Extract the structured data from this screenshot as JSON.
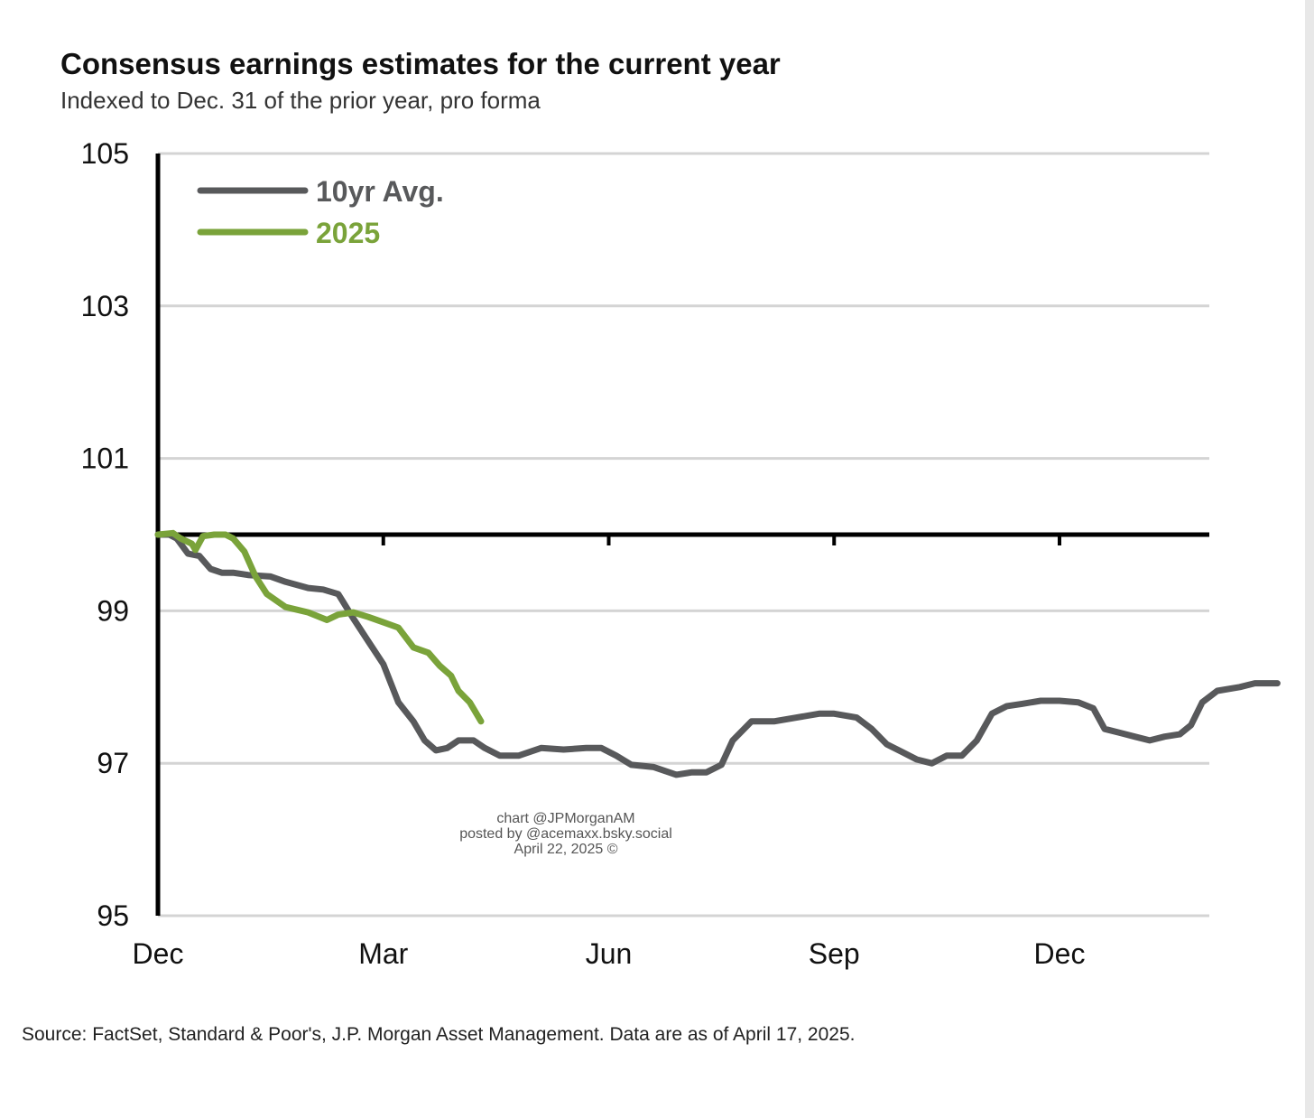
{
  "chart_data": {
    "type": "line",
    "title": "Consensus earnings estimates for the current year",
    "subtitle": "Indexed to Dec. 31 of the prior year, pro forma",
    "source": "Source: FactSet, Standard & Poor's, J.P. Morgan Asset Management. Data are as of April 17, 2025.",
    "watermark": [
      "chart @JPMorganAM",
      "posted by @acemaxx.bsky.social",
      "April 22, 2025 ©"
    ],
    "y_ticks": [
      105,
      103,
      101,
      99,
      97,
      95
    ],
    "y_tick_labels": [
      "105",
      "103",
      "101",
      "99",
      "97",
      "95"
    ],
    "ylim": [
      95,
      105
    ],
    "x_tick_labels": [
      "Dec",
      "Mar",
      "Jun",
      "Sep",
      "Dec"
    ],
    "x_tick_positions": [
      0,
      3,
      6,
      9,
      12
    ],
    "xlim": [
      0,
      13.9
    ],
    "x_unit_note": "months",
    "reference_line": 100,
    "grid": true,
    "legend_position": "top-left",
    "series": [
      {
        "name": "10yr Avg.",
        "color": "#58595b",
        "points": [
          [
            0,
            100
          ],
          [
            0.15,
            100.0
          ],
          [
            0.25,
            99.95
          ],
          [
            0.4,
            99.75
          ],
          [
            0.55,
            99.72
          ],
          [
            0.7,
            99.55
          ],
          [
            0.85,
            99.5
          ],
          [
            1.0,
            99.5
          ],
          [
            1.2,
            99.47
          ],
          [
            1.5,
            99.45
          ],
          [
            1.7,
            99.38
          ],
          [
            2.0,
            99.3
          ],
          [
            2.2,
            99.28
          ],
          [
            2.4,
            99.22
          ],
          [
            2.6,
            98.9
          ],
          [
            2.8,
            98.6
          ],
          [
            3.0,
            98.3
          ],
          [
            3.2,
            97.8
          ],
          [
            3.4,
            97.55
          ],
          [
            3.55,
            97.3
          ],
          [
            3.7,
            97.17
          ],
          [
            3.85,
            97.2
          ],
          [
            4.0,
            97.3
          ],
          [
            4.2,
            97.3
          ],
          [
            4.35,
            97.2
          ],
          [
            4.55,
            97.1
          ],
          [
            4.8,
            97.1
          ],
          [
            5.1,
            97.2
          ],
          [
            5.4,
            97.18
          ],
          [
            5.7,
            97.2
          ],
          [
            5.9,
            97.2
          ],
          [
            6.1,
            97.1
          ],
          [
            6.3,
            96.98
          ],
          [
            6.6,
            96.95
          ],
          [
            6.9,
            96.85
          ],
          [
            7.1,
            96.88
          ],
          [
            7.3,
            96.88
          ],
          [
            7.5,
            96.98
          ],
          [
            7.65,
            97.3
          ],
          [
            7.9,
            97.55
          ],
          [
            8.2,
            97.55
          ],
          [
            8.5,
            97.6
          ],
          [
            8.8,
            97.65
          ],
          [
            9.0,
            97.65
          ],
          [
            9.3,
            97.6
          ],
          [
            9.5,
            97.45
          ],
          [
            9.7,
            97.25
          ],
          [
            9.9,
            97.15
          ],
          [
            10.1,
            97.05
          ],
          [
            10.3,
            97.0
          ],
          [
            10.5,
            97.1
          ],
          [
            10.7,
            97.1
          ],
          [
            10.9,
            97.3
          ],
          [
            11.1,
            97.65
          ],
          [
            11.3,
            97.75
          ],
          [
            11.5,
            97.78
          ],
          [
            11.75,
            97.82
          ],
          [
            12.0,
            97.82
          ],
          [
            12.25,
            97.8
          ],
          [
            12.45,
            97.72
          ],
          [
            12.6,
            97.45
          ],
          [
            12.8,
            97.4
          ],
          [
            13.0,
            97.35
          ],
          [
            13.2,
            97.3
          ],
          [
            13.4,
            97.35
          ],
          [
            13.6,
            97.38
          ],
          [
            13.75,
            97.5
          ],
          [
            13.9,
            97.8
          ],
          [
            14.1,
            97.95
          ],
          [
            14.4,
            98.0
          ],
          [
            14.6,
            98.05
          ],
          [
            14.9,
            98.05
          ]
        ]
      },
      {
        "name": "2025",
        "color": "#7aa33a",
        "points": [
          [
            0,
            100
          ],
          [
            0.2,
            100.02
          ],
          [
            0.3,
            99.95
          ],
          [
            0.45,
            99.88
          ],
          [
            0.5,
            99.8
          ],
          [
            0.6,
            99.98
          ],
          [
            0.75,
            100.0
          ],
          [
            0.9,
            100.0
          ],
          [
            1.0,
            99.95
          ],
          [
            1.15,
            99.78
          ],
          [
            1.3,
            99.45
          ],
          [
            1.45,
            99.22
          ],
          [
            1.7,
            99.05
          ],
          [
            2.0,
            98.98
          ],
          [
            2.25,
            98.88
          ],
          [
            2.4,
            98.95
          ],
          [
            2.6,
            98.98
          ],
          [
            2.8,
            98.92
          ],
          [
            3.0,
            98.85
          ],
          [
            3.2,
            98.78
          ],
          [
            3.4,
            98.52
          ],
          [
            3.6,
            98.45
          ],
          [
            3.75,
            98.28
          ],
          [
            3.9,
            98.15
          ],
          [
            4.0,
            97.95
          ],
          [
            4.15,
            97.8
          ],
          [
            4.3,
            97.55
          ]
        ]
      }
    ]
  }
}
